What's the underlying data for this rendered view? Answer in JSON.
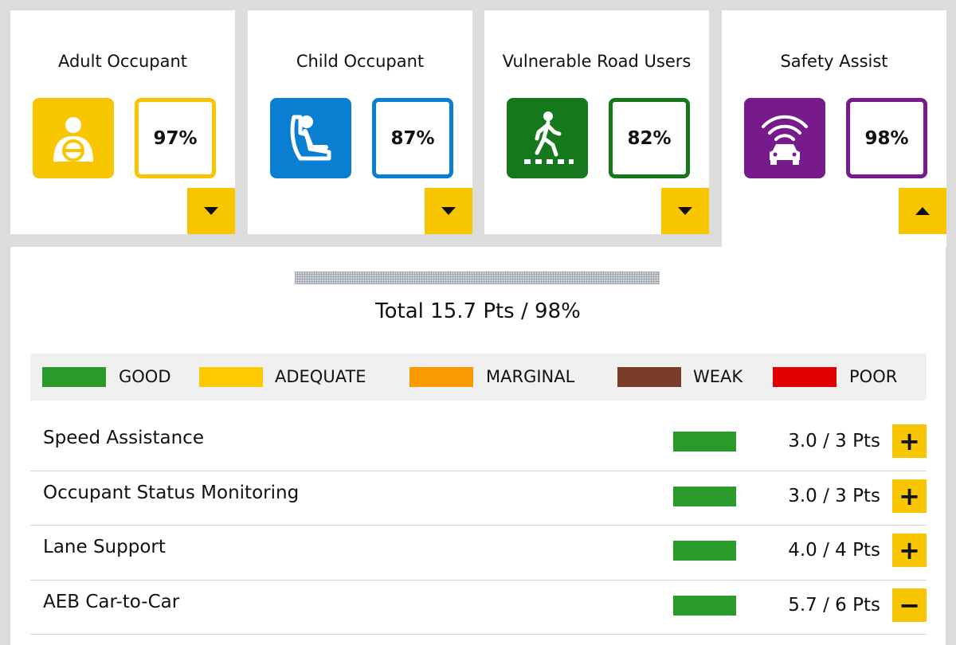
{
  "cards": [
    {
      "title": "Adult Occupant",
      "score": "97%",
      "color": "#f7c600",
      "icon": "adult-occupant-icon",
      "toggle": "collapsed"
    },
    {
      "title": "Child Occupant",
      "score": "87%",
      "color": "#0a7fd1",
      "icon": "child-seat-icon",
      "toggle": "collapsed"
    },
    {
      "title": "Vulnerable Road Users",
      "score": "82%",
      "color": "#16781c",
      "icon": "pedestrian-icon",
      "toggle": "collapsed"
    },
    {
      "title": "Safety Assist",
      "score": "98%",
      "color": "#761a8c",
      "icon": "safety-assist-car-icon",
      "toggle": "expanded"
    }
  ],
  "detail": {
    "total": "Total 15.7 Pts / 98%"
  },
  "legend": [
    {
      "label": "GOOD",
      "color": "#2a9a2b"
    },
    {
      "label": "ADEQUATE",
      "color": "#fdc900"
    },
    {
      "label": "MARGINAL",
      "color": "#fb9a00"
    },
    {
      "label": "WEAK",
      "color": "#7a3d28"
    },
    {
      "label": "POOR",
      "color": "#e00000"
    }
  ],
  "rows": [
    {
      "label": "Speed Assistance",
      "points": "3.0 / 3 Pts",
      "rating_color": "#2a9a2b",
      "button": "+"
    },
    {
      "label": "Occupant Status Monitoring",
      "points": "3.0 / 3 Pts",
      "rating_color": "#2a9a2b",
      "button": "+"
    },
    {
      "label": "Lane Support",
      "points": "4.0 / 4 Pts",
      "rating_color": "#2a9a2b",
      "button": "+"
    },
    {
      "label": "AEB Car-to-Car",
      "points": "5.7 / 6 Pts",
      "rating_color": "#2a9a2b",
      "button": "−"
    }
  ]
}
